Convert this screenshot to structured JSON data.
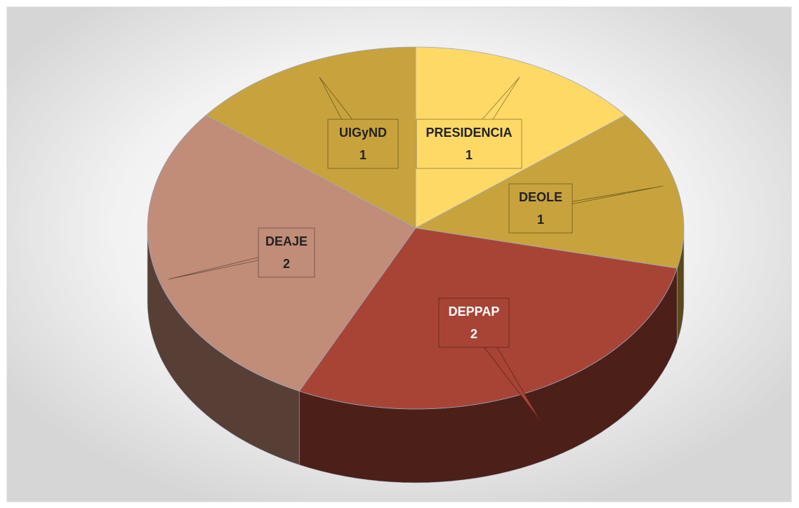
{
  "chart_data": {
    "type": "pie",
    "categories": [
      "PRESIDENCIA",
      "DEOLE",
      "DEPPAP",
      "DEAJE",
      "UIGyND"
    ],
    "values": [
      1,
      1,
      2,
      2,
      1
    ],
    "colors": [
      "#fed966",
      "#c8a33d",
      "#a84436",
      "#c18c78",
      "#c8a33d"
    ]
  }
}
